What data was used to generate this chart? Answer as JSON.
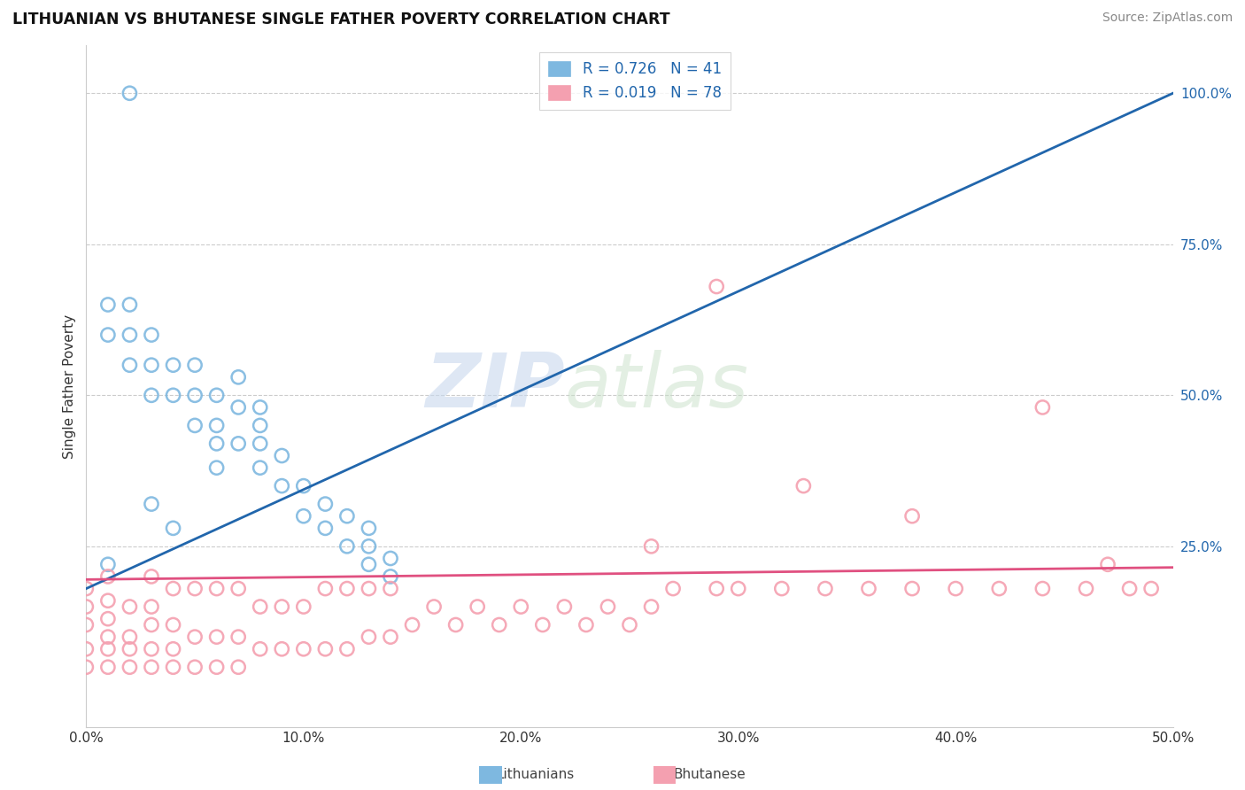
{
  "title": "LITHUANIAN VS BHUTANESE SINGLE FATHER POVERTY CORRELATION CHART",
  "source": "Source: ZipAtlas.com",
  "ylabel": "Single Father Poverty",
  "legend_r1": "R = 0.726",
  "legend_n1": "N = 41",
  "legend_r2": "R = 0.019",
  "legend_n2": "N = 78",
  "color_lithuanian": "#7eb8e0",
  "color_bhutanese": "#f4a0b0",
  "color_line_lithuanian": "#2166ac",
  "color_line_bhutanese": "#e05080",
  "watermark_zip": "ZIP",
  "watermark_atlas": "atlas",
  "xlim": [
    0.0,
    0.5
  ],
  "ylim": [
    -0.05,
    1.08
  ],
  "ytick_vals": [
    0.25,
    0.5,
    0.75,
    1.0
  ],
  "ytick_labels": [
    "25.0%",
    "50.0%",
    "75.0%",
    "100.0%"
  ],
  "xtick_vals": [
    0.0,
    0.1,
    0.2,
    0.3,
    0.4,
    0.5
  ],
  "xtick_labels": [
    "0.0%",
    "10.0%",
    "20.0%",
    "30.0%",
    "40.0%",
    "50.0%"
  ],
  "lith_line_x0": 0.0,
  "lith_line_y0": 0.18,
  "lith_line_x1": 0.5,
  "lith_line_y1": 1.0,
  "bhut_line_x0": 0.0,
  "bhut_line_y0": 0.195,
  "bhut_line_x1": 0.5,
  "bhut_line_y1": 0.215,
  "lithuanian_x": [
    0.01,
    0.01,
    0.02,
    0.02,
    0.02,
    0.03,
    0.03,
    0.03,
    0.04,
    0.04,
    0.05,
    0.05,
    0.05,
    0.06,
    0.06,
    0.07,
    0.07,
    0.07,
    0.08,
    0.08,
    0.08,
    0.08,
    0.09,
    0.09,
    0.1,
    0.1,
    0.11,
    0.11,
    0.12,
    0.12,
    0.13,
    0.13,
    0.13,
    0.14,
    0.14,
    0.06,
    0.06,
    0.03,
    0.04,
    0.02,
    0.01
  ],
  "lithuanian_y": [
    0.6,
    0.65,
    0.55,
    0.6,
    0.65,
    0.5,
    0.55,
    0.6,
    0.5,
    0.55,
    0.45,
    0.5,
    0.55,
    0.45,
    0.5,
    0.42,
    0.48,
    0.53,
    0.38,
    0.42,
    0.45,
    0.48,
    0.35,
    0.4,
    0.3,
    0.35,
    0.28,
    0.32,
    0.25,
    0.3,
    0.22,
    0.25,
    0.28,
    0.2,
    0.23,
    0.38,
    0.42,
    0.32,
    0.28,
    1.0,
    0.22
  ],
  "bhutanese_x": [
    0.0,
    0.0,
    0.0,
    0.0,
    0.0,
    0.01,
    0.01,
    0.01,
    0.01,
    0.01,
    0.01,
    0.02,
    0.02,
    0.02,
    0.02,
    0.03,
    0.03,
    0.03,
    0.03,
    0.03,
    0.04,
    0.04,
    0.04,
    0.04,
    0.05,
    0.05,
    0.05,
    0.06,
    0.06,
    0.06,
    0.07,
    0.07,
    0.07,
    0.08,
    0.08,
    0.09,
    0.09,
    0.1,
    0.1,
    0.11,
    0.11,
    0.12,
    0.12,
    0.13,
    0.13,
    0.14,
    0.14,
    0.15,
    0.16,
    0.17,
    0.18,
    0.19,
    0.2,
    0.21,
    0.22,
    0.23,
    0.24,
    0.25,
    0.26,
    0.27,
    0.29,
    0.3,
    0.32,
    0.34,
    0.36,
    0.38,
    0.4,
    0.42,
    0.44,
    0.46,
    0.48,
    0.49,
    0.38,
    0.26,
    0.33,
    0.47,
    0.44,
    0.29
  ],
  "bhutanese_y": [
    0.05,
    0.08,
    0.12,
    0.15,
    0.18,
    0.05,
    0.08,
    0.1,
    0.13,
    0.16,
    0.2,
    0.05,
    0.08,
    0.1,
    0.15,
    0.05,
    0.08,
    0.12,
    0.15,
    0.2,
    0.05,
    0.08,
    0.12,
    0.18,
    0.05,
    0.1,
    0.18,
    0.05,
    0.1,
    0.18,
    0.05,
    0.1,
    0.18,
    0.08,
    0.15,
    0.08,
    0.15,
    0.08,
    0.15,
    0.08,
    0.18,
    0.08,
    0.18,
    0.1,
    0.18,
    0.1,
    0.18,
    0.12,
    0.15,
    0.12,
    0.15,
    0.12,
    0.15,
    0.12,
    0.15,
    0.12,
    0.15,
    0.12,
    0.15,
    0.18,
    0.18,
    0.18,
    0.18,
    0.18,
    0.18,
    0.18,
    0.18,
    0.18,
    0.18,
    0.18,
    0.18,
    0.18,
    0.3,
    0.25,
    0.35,
    0.22,
    0.48,
    0.68
  ]
}
